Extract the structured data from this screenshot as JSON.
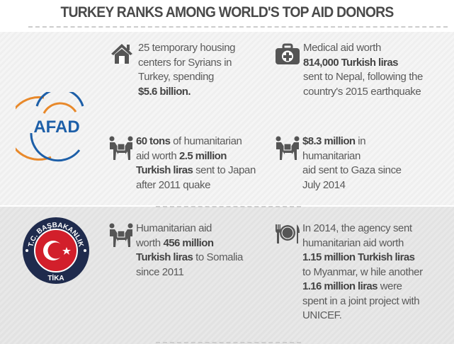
{
  "title": "TURKEY RANKS AMONG WORLD'S TOP AID DONORS",
  "afad": {
    "logo_text": "AFAD",
    "items": [
      {
        "icon": "house-icon",
        "lines": [
          [
            {
              "t": "25 temporary housing"
            }
          ],
          [
            {
              "t": "centers for Syrians in"
            }
          ],
          [
            {
              "t": "Turkey, spending"
            }
          ],
          [
            {
              "t": "$5.6 billion.",
              "b": true
            }
          ]
        ]
      },
      {
        "icon": "medical-kit-icon",
        "lines": [
          [
            {
              "t": "Medical aid worth"
            }
          ],
          [
            {
              "t": "814,000 Turkish liras",
              "b": true
            }
          ],
          [
            {
              "t": "sent to Nepal, following the"
            }
          ],
          [
            {
              "t": "country's 2015 earthquake"
            }
          ]
        ]
      },
      {
        "icon": "people-carrying-box-icon",
        "lines": [
          [
            {
              "t": "60 tons",
              "b": true
            },
            {
              "t": " of humanitarian"
            }
          ],
          [
            {
              "t": "aid worth "
            },
            {
              "t": "2.5 million",
              "b": true
            }
          ],
          [
            {
              "t": "Turkish liras",
              "b": true
            },
            {
              "t": " sent to Japan"
            }
          ],
          [
            {
              "t": "after 2011 quake"
            }
          ]
        ]
      },
      {
        "icon": "people-carrying-box-icon",
        "lines": [
          [
            {
              "t": "$8.3 million",
              "b": true
            },
            {
              "t": " in"
            }
          ],
          [
            {
              "t": "humanitarian"
            }
          ],
          [
            {
              "t": "aid sent to Gaza since"
            }
          ],
          [
            {
              "t": "July 2014"
            }
          ]
        ]
      }
    ]
  },
  "tika": {
    "logo_top": "T.C. BAŞBAKANLIK",
    "logo_bottom": "TİKA",
    "items": [
      {
        "icon": "people-carrying-box-icon",
        "lines": [
          [
            {
              "t": "Humanitarian aid"
            }
          ],
          [
            {
              "t": "worth "
            },
            {
              "t": "456 million",
              "b": true
            }
          ],
          [
            {
              "t": "Turkish liras",
              "b": true
            },
            {
              "t": " to Somalia"
            }
          ],
          [
            {
              "t": "since 2011"
            }
          ]
        ]
      },
      {
        "icon": "fork-plate-knife-icon",
        "lines": [
          [
            {
              "t": "In 2014, the agency sent"
            }
          ],
          [
            {
              "t": "humanitarian aid worth"
            }
          ],
          [
            {
              "t": "1.15 million Turkish liras",
              "b": true
            }
          ],
          [
            {
              "t": "to Myanmar, w hile another"
            }
          ],
          [
            {
              "t": "1.16 million liras",
              "b": true
            },
            {
              "t": " were"
            }
          ],
          [
            {
              "t": "spent in a joint project with"
            }
          ],
          [
            {
              "t": "UNICEF."
            }
          ]
        ]
      }
    ]
  },
  "colors": {
    "afad_blue": "#1d5fa8",
    "afad_orange": "#e8892b",
    "tika_navy": "#1f2b4d",
    "tika_red": "#d21f2b",
    "text": "#555555"
  }
}
